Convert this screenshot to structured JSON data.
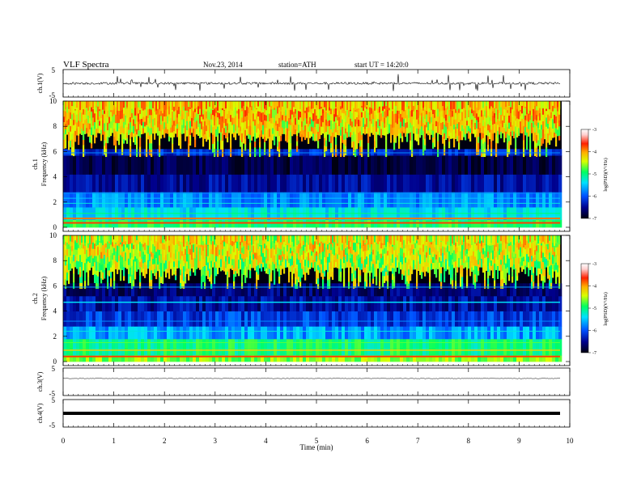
{
  "header": {
    "title": "VLF  Spectra",
    "date": "Nov.23, 2014",
    "station": "station=ATH",
    "start": "start  UT =  14:20:0"
  },
  "chart_data": [
    {
      "type": "line",
      "panel": "ch1_waveform",
      "ylabel": "ch.1(V)",
      "ylim": [
        -5,
        5
      ],
      "yticks": [
        "5",
        "-5"
      ],
      "xlim": [
        0,
        9.8
      ],
      "baseline_level": 0,
      "note_values": "noisy waveform, baseline near 0 V with spikes to about +/-3 V"
    },
    {
      "type": "heatmap",
      "panel": "ch1_spectrogram",
      "ylabel_channel": "ch.1",
      "ylabel": "Frequency  (kHz)",
      "ylim": [
        0,
        10
      ],
      "yticks": [
        "0",
        "2",
        "4",
        "6",
        "8",
        "10"
      ],
      "xlim": [
        0,
        9.8
      ],
      "colorbar": {
        "label": "log(PSD)(V²/Hz)",
        "range": [
          -7,
          -3
        ],
        "ticks": [
          "-3",
          "-4",
          "-5",
          "-6",
          "-7"
        ]
      }
    },
    {
      "type": "heatmap",
      "panel": "ch2_spectrogram",
      "ylabel_channel": "ch.2",
      "ylabel": "Frequency  (kHz)",
      "ylim": [
        0,
        10
      ],
      "yticks": [
        "0",
        "2",
        "4",
        "6",
        "8",
        "10"
      ],
      "xlim": [
        0,
        9.8
      ],
      "colorbar": {
        "label": "log(PSD)(V²/Hz)",
        "range": [
          -7,
          -3
        ],
        "ticks": [
          "-3",
          "-4",
          "-5",
          "-6",
          "-7"
        ]
      }
    },
    {
      "type": "line",
      "panel": "ch3_waveform",
      "ylabel": "ch.3(V)",
      "ylim": [
        -5,
        5
      ],
      "yticks": [
        "5",
        "-5"
      ],
      "xlim": [
        0,
        9.8
      ],
      "baseline_level": 1.2
    },
    {
      "type": "line",
      "panel": "ch4_waveform",
      "ylabel": "ch.4(V)",
      "ylim": [
        -5,
        5
      ],
      "yticks": [
        "5",
        "-5"
      ],
      "xlim": [
        0,
        9.8
      ],
      "baseline_level": 0
    }
  ],
  "xaxis": {
    "label": "Time  (min)",
    "range": [
      0,
      10
    ],
    "ticks": [
      "0",
      "1",
      "2",
      "3",
      "4",
      "5",
      "6",
      "7",
      "8",
      "9",
      "10"
    ]
  },
  "colors": {
    "cmap": [
      "#000010",
      "#00008c",
      "#0050ff",
      "#00e0ff",
      "#00ff60",
      "#d8ff00",
      "#ffb000",
      "#ff2000",
      "#ffffff"
    ]
  }
}
